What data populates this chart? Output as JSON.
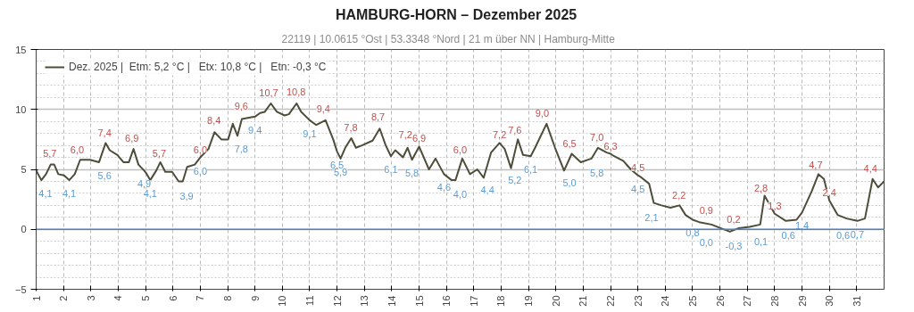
{
  "chart_data": {
    "type": "line",
    "title": "HAMBURG-HORN  –  Dezember 2025",
    "subtitle": "22119  |  10.0615 °Ost  |  53.3348 °Nord  |  21 m über NN  |  Hamburg-Mitte",
    "xlim": [
      1,
      32
    ],
    "xticks": [
      1,
      2,
      3,
      4,
      5,
      6,
      7,
      8,
      9,
      10,
      11,
      12,
      13,
      14,
      15,
      16,
      17,
      18,
      19,
      20,
      21,
      22,
      23,
      24,
      25,
      26,
      27,
      28,
      29,
      30,
      31
    ],
    "ylim": [
      -5,
      15
    ],
    "yticks": [
      -5,
      0,
      5,
      10,
      15
    ],
    "grid": true,
    "legend": "top left",
    "line_style": "solid",
    "marker": "none",
    "ref_lines": [
      {
        "axis": "y",
        "value": 0,
        "label": null,
        "color": "#4f81bd"
      }
    ],
    "series": [
      {
        "name": "Dez. 2025 |  Etm: 5,2 °C |   Etx: 10,8 °C |   Etn: -0,3 °C",
        "color": "#4d4d3a",
        "x": [
          1.0,
          1.19,
          1.36,
          1.53,
          1.66,
          1.81,
          2.02,
          2.21,
          2.41,
          2.61,
          2.97,
          3.3,
          3.54,
          3.69,
          3.97,
          4.19,
          4.39,
          4.56,
          4.74,
          4.95,
          5.02,
          5.17,
          5.39,
          5.54,
          5.72,
          5.97,
          6.21,
          6.36,
          6.52,
          6.8,
          7.0,
          7.3,
          7.52,
          7.77,
          8.02,
          8.19,
          8.36,
          8.52,
          9.0,
          9.19,
          9.36,
          9.58,
          9.8,
          10.08,
          10.24,
          10.52,
          10.69,
          11.0,
          11.24,
          11.58,
          11.86,
          12.0,
          12.13,
          12.3,
          12.52,
          12.69,
          12.91,
          13.3,
          13.56,
          13.78,
          13.97,
          14.13,
          14.41,
          14.58,
          14.74,
          15.0,
          15.36,
          15.6,
          15.91,
          16.19,
          16.33,
          16.58,
          16.86,
          17.13,
          17.36,
          17.63,
          17.94,
          18.13,
          18.36,
          18.61,
          18.8,
          19.08,
          19.24,
          19.66,
          19.97,
          20.3,
          20.58,
          20.91,
          21.3,
          21.54,
          21.86,
          22.0,
          22.13,
          22.47,
          22.74,
          23.0,
          23.08,
          23.41,
          23.58,
          23.86,
          24.19,
          24.52,
          24.74,
          25.0,
          25.24,
          25.69,
          26.02,
          26.36,
          26.69,
          27.08,
          27.47,
          27.63,
          28.0,
          28.41,
          28.8,
          29.0,
          29.36,
          29.6,
          29.8,
          30.0,
          30.3,
          30.63,
          31.02,
          31.3,
          31.58,
          31.78,
          32.0
        ],
        "values": [
          4.9,
          4.1,
          4.6,
          5.4,
          5.4,
          4.6,
          4.5,
          4.1,
          4.6,
          5.8,
          5.8,
          5.6,
          7.2,
          6.6,
          6.2,
          5.6,
          5.6,
          6.7,
          5.4,
          4.9,
          4.7,
          4.1,
          4.9,
          5.6,
          4.8,
          4.8,
          4.0,
          4.0,
          5.2,
          5.4,
          6.0,
          6.7,
          8.1,
          7.5,
          7.5,
          8.8,
          7.8,
          9.2,
          9.4,
          9.7,
          9.8,
          10.5,
          9.8,
          9.5,
          9.6,
          10.5,
          9.8,
          9.1,
          8.7,
          9.1,
          7.5,
          6.5,
          5.9,
          6.8,
          7.6,
          6.8,
          7.0,
          7.4,
          8.4,
          7.0,
          6.1,
          6.6,
          6.0,
          6.8,
          5.8,
          6.9,
          5.0,
          5.9,
          4.6,
          4.1,
          4.1,
          5.9,
          4.6,
          5.0,
          4.3,
          6.4,
          7.2,
          6.7,
          5.1,
          7.5,
          6.2,
          6.1,
          6.8,
          8.8,
          6.8,
          4.9,
          6.3,
          5.6,
          5.9,
          6.8,
          6.4,
          6.3,
          6.1,
          5.7,
          5.0,
          4.5,
          4.4,
          3.8,
          2.2,
          2.0,
          1.8,
          2.0,
          1.2,
          0.8,
          0.6,
          0.4,
          0.1,
          -0.2,
          0.1,
          0.2,
          0.4,
          2.8,
          1.3,
          0.7,
          0.8,
          1.4,
          3.2,
          4.6,
          4.2,
          2.4,
          1.2,
          0.9,
          0.7,
          0.9,
          4.2,
          3.5,
          4.0
        ]
      }
    ],
    "annotations": [
      {
        "text": "5,7",
        "x": 1.5,
        "y": 5.7
      },
      {
        "text": "4,1",
        "x": 1.19,
        "y": 4.1
      },
      {
        "text": "6,0",
        "x": 2.5,
        "y": 6.0
      },
      {
        "text": "4,1",
        "x": 2.21,
        "y": 4.1
      },
      {
        "text": "7,4",
        "x": 3.5,
        "y": 7.4
      },
      {
        "text": "5,6",
        "x": 3.5,
        "y": 5.6
      },
      {
        "text": "6,9",
        "x": 4.5,
        "y": 6.9
      },
      {
        "text": "4,9",
        "x": 4.95,
        "y": 4.9
      },
      {
        "text": "5,7",
        "x": 5.5,
        "y": 5.7
      },
      {
        "text": "4,1",
        "x": 5.17,
        "y": 4.1
      },
      {
        "text": "6,0",
        "x": 7.0,
        "y": 6.0
      },
      {
        "text": "3,9",
        "x": 6.5,
        "y": 3.9
      },
      {
        "text": "8,4",
        "x": 7.5,
        "y": 8.4
      },
      {
        "text": "6,0",
        "x": 7.0,
        "y": 6.0
      },
      {
        "text": "9,6",
        "x": 8.5,
        "y": 9.6
      },
      {
        "text": "7,8",
        "x": 8.5,
        "y": 7.8
      },
      {
        "text": "10,7",
        "x": 9.5,
        "y": 10.7
      },
      {
        "text": "9,4",
        "x": 9.0,
        "y": 9.4
      },
      {
        "text": "10,8",
        "x": 10.5,
        "y": 10.8
      },
      {
        "text": "9,1",
        "x": 11.0,
        "y": 9.1
      },
      {
        "text": "9,4",
        "x": 11.5,
        "y": 9.4
      },
      {
        "text": "6,5",
        "x": 12.0,
        "y": 6.5
      },
      {
        "text": "7,8",
        "x": 12.5,
        "y": 7.8
      },
      {
        "text": "5,9",
        "x": 12.13,
        "y": 5.9
      },
      {
        "text": "8,7",
        "x": 13.5,
        "y": 8.7
      },
      {
        "text": "6,1",
        "x": 13.97,
        "y": 6.1
      },
      {
        "text": "7,2",
        "x": 14.5,
        "y": 7.2
      },
      {
        "text": "5,8",
        "x": 14.74,
        "y": 5.8
      },
      {
        "text": "6,9",
        "x": 15.0,
        "y": 6.9
      },
      {
        "text": "4,6",
        "x": 15.91,
        "y": 4.6
      },
      {
        "text": "6,0",
        "x": 16.5,
        "y": 6.0
      },
      {
        "text": "4,0",
        "x": 16.5,
        "y": 4.0
      },
      {
        "text": "7,2",
        "x": 17.94,
        "y": 7.2
      },
      {
        "text": "4,4",
        "x": 17.5,
        "y": 4.4
      },
      {
        "text": "7,6",
        "x": 18.5,
        "y": 7.6
      },
      {
        "text": "5,2",
        "x": 18.5,
        "y": 5.2
      },
      {
        "text": "9,0",
        "x": 19.5,
        "y": 9.0
      },
      {
        "text": "6,1",
        "x": 19.08,
        "y": 6.1
      },
      {
        "text": "6,5",
        "x": 20.5,
        "y": 6.5
      },
      {
        "text": "5,0",
        "x": 20.5,
        "y": 5.0
      },
      {
        "text": "7,0",
        "x": 21.5,
        "y": 7.0
      },
      {
        "text": "5,8",
        "x": 21.5,
        "y": 5.8
      },
      {
        "text": "6,3",
        "x": 22.0,
        "y": 6.3
      },
      {
        "text": "4,5",
        "x": 23.0,
        "y": 4.5
      },
      {
        "text": "4,5",
        "x": 23.0,
        "y": 4.5
      },
      {
        "text": "2,1",
        "x": 23.5,
        "y": 2.1
      },
      {
        "text": "2,2",
        "x": 24.5,
        "y": 2.2
      },
      {
        "text": "0,8",
        "x": 25.0,
        "y": 0.8
      },
      {
        "text": "0,9",
        "x": 25.5,
        "y": 0.9
      },
      {
        "text": "0,0",
        "x": 25.5,
        "y": 0.0
      },
      {
        "text": "0,2",
        "x": 26.5,
        "y": 0.2
      },
      {
        "text": "-0,3",
        "x": 26.5,
        "y": -0.3
      },
      {
        "text": "2,8",
        "x": 27.5,
        "y": 2.8
      },
      {
        "text": "0,1",
        "x": 27.5,
        "y": 0.1
      },
      {
        "text": "1,3",
        "x": 28.0,
        "y": 1.3
      },
      {
        "text": "0,6",
        "x": 28.5,
        "y": 0.6
      },
      {
        "text": "4,7",
        "x": 29.5,
        "y": 4.7
      },
      {
        "text": "1,4",
        "x": 29.0,
        "y": 1.4
      },
      {
        "text": "2,4",
        "x": 30.0,
        "y": 2.4
      },
      {
        "text": "0,6",
        "x": 30.5,
        "y": 0.6
      },
      {
        "text": "4,4",
        "x": 31.5,
        "y": 4.4
      },
      {
        "text": "0,7",
        "x": 31.02,
        "y": 0.7
      }
    ]
  }
}
